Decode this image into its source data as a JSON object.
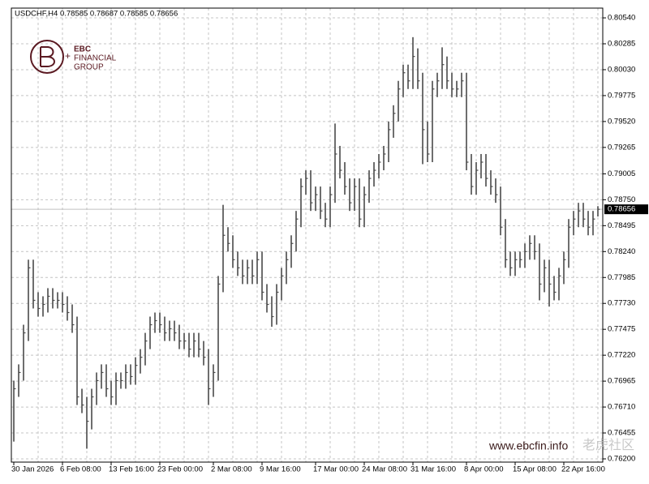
{
  "chart_data": {
    "type": "ohlc",
    "title": "USDCHF,H4  0.78585 0.78687 0.78585 0.78656",
    "logo": {
      "name": "EBC",
      "line1": "FINANCIAL",
      "line2": "GROUP"
    },
    "watermark": "www.ebcfin.info",
    "watermark2": "老虎社区",
    "color": "#4a4a4a",
    "grid": true,
    "current_price": 0.78656,
    "ylim": [
      0.76168,
      0.80636
    ],
    "yticks": [
      {
        "value": 0.8054,
        "label": "0.80540"
      },
      {
        "value": 0.80285,
        "label": "0.80285"
      },
      {
        "value": 0.8003,
        "label": "0.80030"
      },
      {
        "value": 0.79775,
        "label": "0.79775"
      },
      {
        "value": 0.7952,
        "label": "0.79520"
      },
      {
        "value": 0.79265,
        "label": "0.79265"
      },
      {
        "value": 0.79005,
        "label": "0.79005"
      },
      {
        "value": 0.7875,
        "label": "0.78750"
      },
      {
        "value": 0.78495,
        "label": "0.78495"
      },
      {
        "value": 0.7824,
        "label": "0.78240"
      },
      {
        "value": 0.77985,
        "label": "0.77985"
      },
      {
        "value": 0.7773,
        "label": "0.77730"
      },
      {
        "value": 0.77475,
        "label": "0.77475"
      },
      {
        "value": 0.7722,
        "label": "0.77220"
      },
      {
        "value": 0.76965,
        "label": "0.76965"
      },
      {
        "value": 0.7671,
        "label": "0.76710"
      },
      {
        "value": 0.76455,
        "label": "0.76455"
      },
      {
        "value": 0.762,
        "label": "0.76200"
      }
    ],
    "categories": [
      "30 Jan 2026",
      null,
      null,
      null,
      null,
      null,
      null,
      null,
      null,
      null,
      "6 Feb 08:00",
      null,
      null,
      null,
      null,
      null,
      null,
      null,
      null,
      null,
      "13 Feb 16:00",
      null,
      null,
      null,
      null,
      null,
      null,
      null,
      null,
      null,
      "23 Feb 00:00",
      null,
      null,
      null,
      null,
      null,
      null,
      null,
      null,
      null,
      null,
      "2 Mar 08:00",
      null,
      null,
      null,
      null,
      null,
      null,
      null,
      null,
      null,
      "9 Mar 16:00",
      null,
      null,
      null,
      null,
      null,
      null,
      null,
      null,
      null,
      null,
      "17 Mar 00:00",
      null,
      null,
      null,
      null,
      null,
      null,
      null,
      null,
      null,
      "24 Mar 08:00",
      null,
      null,
      null,
      null,
      null,
      null,
      null,
      null,
      null,
      "31 Mar 16:00",
      null,
      null,
      null,
      null,
      null,
      null,
      null,
      null,
      null,
      null,
      "8 Apr 00:00",
      null,
      null,
      null,
      null,
      null,
      null,
      null,
      null,
      null,
      "15 Apr 08:00",
      null,
      null,
      null,
      null,
      null,
      null,
      null,
      null,
      null,
      "22 Apr 16:00",
      null,
      null,
      null,
      null,
      null,
      null,
      null
    ],
    "high": [
      0.7697,
      0.7713,
      0.7752,
      0.7816,
      0.7816,
      0.7784,
      0.778,
      0.7788,
      0.7788,
      0.7784,
      0.7784,
      0.778,
      0.7772,
      0.776,
      0.7689,
      0.7681,
      0.7689,
      0.7705,
      0.7713,
      0.7713,
      0.7697,
      0.7705,
      0.7705,
      0.7713,
      0.7713,
      0.772,
      0.7728,
      0.7744,
      0.776,
      0.7764,
      0.7764,
      0.776,
      0.7756,
      0.7756,
      0.7752,
      0.7744,
      0.7744,
      0.7744,
      0.7744,
      0.7736,
      0.7728,
      0.7713,
      0.78,
      0.787,
      0.7848,
      0.784,
      0.7824,
      0.7816,
      0.7816,
      0.7816,
      0.7824,
      0.7824,
      0.7792,
      0.778,
      0.7792,
      0.7808,
      0.7824,
      0.784,
      0.7864,
      0.7896,
      0.7904,
      0.7904,
      0.7888,
      0.7888,
      0.7872,
      0.7888,
      0.795,
      0.7928,
      0.7912,
      0.7896,
      0.7896,
      0.7896,
      0.7888,
      0.7904,
      0.7912,
      0.792,
      0.7928,
      0.7952,
      0.7968,
      0.7992,
      0.8008,
      0.8008,
      0.8035,
      0.8024,
      0.8,
      0.7952,
      0.7992,
      0.8,
      0.8025,
      0.8016,
      0.8,
      0.7992,
      0.8,
      0.8,
      0.792,
      0.7912,
      0.792,
      0.792,
      0.7904,
      0.7896,
      0.7888,
      0.7856,
      0.7824,
      0.7824,
      0.7824,
      0.7832,
      0.784,
      0.784,
      0.7832,
      0.7816,
      0.7816,
      0.78,
      0.7808,
      0.7824,
      0.7856,
      0.7864,
      0.7872,
      0.7872,
      0.7864,
      0.7864,
      0.78687
    ],
    "low": [
      0.7637,
      0.7681,
      0.7697,
      0.7736,
      0.7768,
      0.776,
      0.776,
      0.7764,
      0.7768,
      0.7768,
      0.7764,
      0.7756,
      0.7744,
      0.7673,
      0.7665,
      0.763,
      0.7649,
      0.7673,
      0.7689,
      0.7681,
      0.7673,
      0.7673,
      0.7689,
      0.7689,
      0.7693,
      0.7693,
      0.7704,
      0.7712,
      0.7728,
      0.7744,
      0.7744,
      0.7736,
      0.7736,
      0.7736,
      0.7728,
      0.7728,
      0.772,
      0.772,
      0.772,
      0.7712,
      0.7673,
      0.7681,
      0.7697,
      0.7784,
      0.7824,
      0.7808,
      0.78,
      0.7792,
      0.7792,
      0.7792,
      0.7792,
      0.7776,
      0.7764,
      0.775,
      0.7752,
      0.7776,
      0.7792,
      0.7808,
      0.7824,
      0.7848,
      0.788,
      0.7864,
      0.7864,
      0.7856,
      0.7848,
      0.7848,
      0.7872,
      0.7896,
      0.788,
      0.7864,
      0.7864,
      0.7848,
      0.7848,
      0.7872,
      0.7888,
      0.7896,
      0.7904,
      0.7912,
      0.7936,
      0.7952,
      0.7976,
      0.7984,
      0.7984,
      0.7984,
      0.791,
      0.7912,
      0.7912,
      0.7976,
      0.7984,
      0.7984,
      0.7976,
      0.7976,
      0.7976,
      0.7904,
      0.788,
      0.788,
      0.7896,
      0.7888,
      0.788,
      0.7872,
      0.784,
      0.7808,
      0.78,
      0.78,
      0.7808,
      0.7808,
      0.7816,
      0.7816,
      0.7776,
      0.7784,
      0.777,
      0.7776,
      0.7776,
      0.7792,
      0.7808,
      0.784,
      0.7848,
      0.7848,
      0.784,
      0.784,
      0.78585
    ],
    "close": [
      0.7689,
      0.7705,
      0.7744,
      0.7808,
      0.7776,
      0.7768,
      0.7772,
      0.778,
      0.7776,
      0.7776,
      0.7772,
      0.7764,
      0.7752,
      0.7681,
      0.7673,
      0.7657,
      0.7681,
      0.7697,
      0.7705,
      0.7689,
      0.7681,
      0.7697,
      0.7697,
      0.7705,
      0.7701,
      0.7712,
      0.772,
      0.7736,
      0.7752,
      0.7756,
      0.7752,
      0.7744,
      0.7748,
      0.7744,
      0.7736,
      0.7736,
      0.7728,
      0.7736,
      0.7728,
      0.772,
      0.7689,
      0.7705,
      0.7792,
      0.784,
      0.7832,
      0.7816,
      0.7808,
      0.78,
      0.7808,
      0.78,
      0.7816,
      0.7784,
      0.7772,
      0.776,
      0.7784,
      0.78,
      0.7816,
      0.7832,
      0.7856,
      0.7888,
      0.7896,
      0.7872,
      0.788,
      0.7864,
      0.7856,
      0.788,
      0.792,
      0.7904,
      0.7888,
      0.7872,
      0.7888,
      0.7856,
      0.788,
      0.7896,
      0.7904,
      0.7912,
      0.792,
      0.7944,
      0.796,
      0.7984,
      0.8,
      0.7992,
      0.8016,
      0.7992,
      0.7944,
      0.792,
      0.7984,
      0.7992,
      0.8008,
      0.7992,
      0.7984,
      0.7984,
      0.7992,
      0.7912,
      0.7888,
      0.7904,
      0.7912,
      0.7896,
      0.7888,
      0.788,
      0.7848,
      0.7816,
      0.7808,
      0.7816,
      0.7816,
      0.7824,
      0.7832,
      0.7824,
      0.7792,
      0.7808,
      0.7792,
      0.7784,
      0.78,
      0.7816,
      0.7848,
      0.7856,
      0.7864,
      0.7856,
      0.7848,
      0.7856,
      0.78656
    ]
  }
}
